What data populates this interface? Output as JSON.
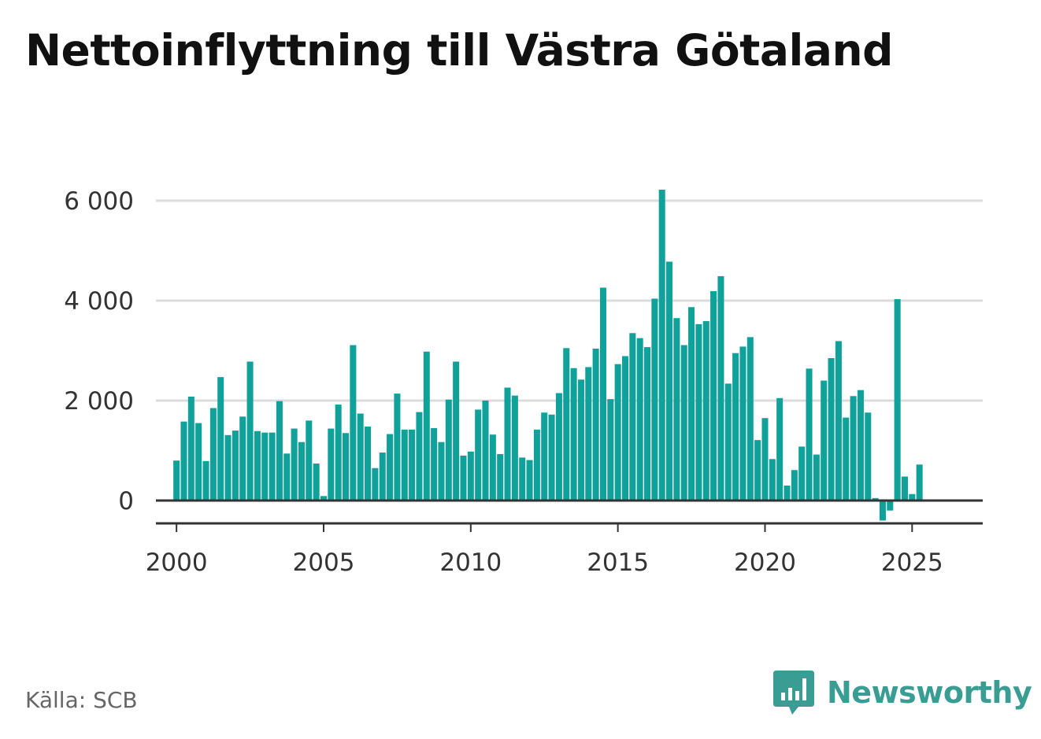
{
  "title": "Nettoinflyttning till Västra Götaland",
  "source": "Källa: SCB",
  "brand": {
    "name": "Newsworthy",
    "icon": "newsworthy-logo-icon",
    "color": "#3a9d94"
  },
  "colors": {
    "bar": "#0fa19a",
    "grid": "#dcdcdc",
    "axis": "#333333",
    "text": "#333333"
  },
  "chart_data": {
    "type": "bar",
    "title": "Nettoinflyttning till Västra Götaland",
    "xlabel": "",
    "ylabel": "",
    "ylim": [
      -400,
      6300
    ],
    "xlim": [
      1999.3,
      2027.4
    ],
    "yticks": [
      0,
      2000,
      4000,
      6000
    ],
    "ytick_labels": [
      "0",
      "2 000",
      "4 000",
      "6 000"
    ],
    "xticks": [
      2000,
      2005,
      2010,
      2015,
      2020,
      2025
    ],
    "xtick_labels": [
      "2000",
      "2005",
      "2010",
      "2015",
      "2020",
      "2025"
    ],
    "grid": true,
    "legend": "none",
    "x": [
      2000.0,
      2000.25,
      2000.5,
      2000.75,
      2001.0,
      2001.25,
      2001.5,
      2001.75,
      2002.0,
      2002.25,
      2002.5,
      2002.75,
      2003.0,
      2003.25,
      2003.5,
      2003.75,
      2004.0,
      2004.25,
      2004.5,
      2004.75,
      2005.0,
      2005.25,
      2005.5,
      2005.75,
      2006.0,
      2006.25,
      2006.5,
      2006.75,
      2007.0,
      2007.25,
      2007.5,
      2007.75,
      2008.0,
      2008.25,
      2008.5,
      2008.75,
      2009.0,
      2009.25,
      2009.5,
      2009.75,
      2010.0,
      2010.25,
      2010.5,
      2010.75,
      2011.0,
      2011.25,
      2011.5,
      2011.75,
      2012.0,
      2012.25,
      2012.5,
      2012.75,
      2013.0,
      2013.25,
      2013.5,
      2013.75,
      2014.0,
      2014.25,
      2014.5,
      2014.75,
      2015.0,
      2015.25,
      2015.5,
      2015.75,
      2016.0,
      2016.25,
      2016.5,
      2016.75,
      2017.0,
      2017.25,
      2017.5,
      2017.75,
      2018.0,
      2018.25,
      2018.5,
      2018.75,
      2019.0,
      2019.25,
      2019.5,
      2019.75,
      2020.0,
      2020.25,
      2020.5,
      2020.75,
      2021.0,
      2021.25,
      2021.5,
      2021.75,
      2022.0,
      2022.25,
      2022.5,
      2022.75,
      2023.0,
      2023.25,
      2023.5,
      2023.75,
      2024.0,
      2024.25,
      2024.5,
      2024.75,
      2025.0,
      2025.25
    ],
    "values": [
      800,
      1580,
      2080,
      1550,
      790,
      1850,
      2470,
      1310,
      1400,
      1680,
      2780,
      1390,
      1360,
      1360,
      1990,
      940,
      1440,
      1170,
      1600,
      740,
      90,
      1440,
      1920,
      1350,
      3110,
      1740,
      1480,
      650,
      960,
      1330,
      2140,
      1420,
      1420,
      1770,
      2980,
      1450,
      1170,
      2020,
      2780,
      900,
      980,
      1820,
      2000,
      1320,
      930,
      2260,
      2100,
      860,
      810,
      1420,
      1760,
      1720,
      2150,
      3050,
      2650,
      2420,
      2670,
      3040,
      4260,
      2030,
      2730,
      2890,
      3350,
      3250,
      3070,
      4040,
      6220,
      4780,
      3650,
      3110,
      3870,
      3530,
      3590,
      4190,
      4490,
      2340,
      2950,
      3080,
      3270,
      1210,
      1650,
      830,
      2050,
      300,
      610,
      1080,
      2640,
      920,
      2400,
      2850,
      3190,
      1660,
      2090,
      2210,
      1760,
      50,
      -400,
      -200,
      4030,
      480,
      130,
      720
    ]
  }
}
